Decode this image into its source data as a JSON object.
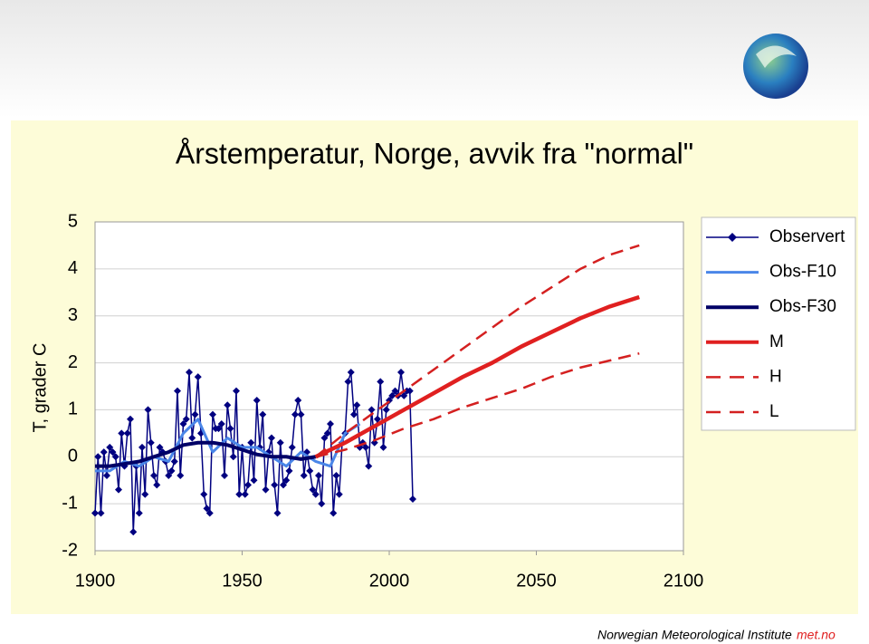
{
  "chart_data": {
    "type": "line",
    "title": "Årstemperatur, Norge, avvik fra \"normal\"",
    "y_label": "T, grader C",
    "xlim": [
      1900,
      2100
    ],
    "ylim": [
      -2,
      5
    ],
    "xticks": [
      1900,
      1950,
      2000,
      2050,
      2100
    ],
    "yticks": [
      -2,
      -1,
      0,
      1,
      2,
      3,
      4,
      5
    ],
    "grid": true,
    "legend": "right",
    "series": [
      {
        "name": "Observert",
        "color": "#000080",
        "marker": "diamond",
        "width": 1.5,
        "x": [
          1900,
          1901,
          1902,
          1903,
          1904,
          1905,
          1906,
          1907,
          1908,
          1909,
          1910,
          1911,
          1912,
          1913,
          1914,
          1915,
          1916,
          1917,
          1918,
          1919,
          1920,
          1921,
          1922,
          1923,
          1924,
          1925,
          1926,
          1927,
          1928,
          1929,
          1930,
          1931,
          1932,
          1933,
          1934,
          1935,
          1936,
          1937,
          1938,
          1939,
          1940,
          1941,
          1942,
          1943,
          1944,
          1945,
          1946,
          1947,
          1948,
          1949,
          1950,
          1951,
          1952,
          1953,
          1954,
          1955,
          1956,
          1957,
          1958,
          1959,
          1960,
          1961,
          1962,
          1963,
          1964,
          1965,
          1966,
          1967,
          1968,
          1969,
          1970,
          1971,
          1972,
          1973,
          1974,
          1975,
          1976,
          1977,
          1978,
          1979,
          1980,
          1981,
          1982,
          1983,
          1984,
          1985,
          1986,
          1987,
          1988,
          1989,
          1990,
          1991,
          1992,
          1993,
          1994,
          1995,
          1996,
          1997,
          1998,
          1999,
          2000,
          2001,
          2002,
          2003,
          2004,
          2005,
          2006,
          2007,
          2008
        ],
        "values": [
          -1.2,
          0.0,
          -1.2,
          0.1,
          -0.4,
          0.2,
          0.1,
          0.0,
          -0.7,
          0.5,
          -0.2,
          0.5,
          0.8,
          -1.6,
          -0.2,
          -1.2,
          0.2,
          -0.8,
          1.0,
          0.3,
          -0.4,
          -0.6,
          0.2,
          0.1,
          -0.1,
          -0.4,
          -0.3,
          -0.1,
          1.4,
          -0.4,
          0.7,
          0.8,
          1.8,
          0.4,
          0.9,
          1.7,
          0.5,
          -0.8,
          -1.1,
          -1.2,
          0.9,
          0.6,
          0.6,
          0.7,
          -0.4,
          1.1,
          0.6,
          0.0,
          1.4,
          -0.8,
          0.2,
          -0.8,
          -0.6,
          0.3,
          -0.5,
          1.2,
          0.2,
          0.9,
          -0.7,
          0.1,
          0.4,
          -0.6,
          -1.2,
          0.3,
          -0.6,
          -0.5,
          -0.3,
          0.2,
          0.9,
          1.2,
          0.9,
          -0.4,
          0.1,
          -0.3,
          -0.7,
          -0.8,
          -0.4,
          -1.0,
          0.4,
          0.5,
          0.7,
          -1.2,
          -0.4,
          -0.8,
          0.3,
          0.5,
          1.6,
          1.8,
          0.9,
          1.1,
          0.2,
          0.3,
          0.2,
          -0.2,
          1.0,
          0.3,
          0.8,
          1.6,
          0.2,
          1.0,
          1.2,
          1.3,
          1.4,
          1.3,
          1.8,
          1.3,
          1.4,
          1.4,
          -0.9
        ]
      },
      {
        "name": "Obs-F10",
        "color": "#4a86e8",
        "width": 3,
        "x": [
          1900,
          1905,
          1910,
          1915,
          1920,
          1925,
          1930,
          1935,
          1940,
          1945,
          1950,
          1955,
          1960,
          1965,
          1970,
          1975,
          1980,
          1985,
          1990
        ],
        "values": [
          -0.3,
          -0.3,
          -0.1,
          -0.2,
          0.0,
          -0.1,
          0.5,
          0.8,
          0.1,
          0.4,
          0.2,
          0.2,
          0.0,
          -0.2,
          0.1,
          -0.1,
          -0.2,
          0.5,
          0.7
        ]
      },
      {
        "name": "Obs-F30",
        "color": "#000066",
        "width": 4,
        "x": [
          1900,
          1905,
          1910,
          1915,
          1920,
          1925,
          1930,
          1935,
          1940,
          1945,
          1950,
          1955,
          1960,
          1965,
          1970,
          1975
        ],
        "values": [
          -0.2,
          -0.2,
          -0.15,
          -0.1,
          0.0,
          0.1,
          0.25,
          0.3,
          0.3,
          0.25,
          0.15,
          0.05,
          0.0,
          0.0,
          -0.05,
          0.0
        ]
      },
      {
        "name": "M",
        "color": "#e02020",
        "width": 4.5,
        "x": [
          1975,
          1985,
          1995,
          2005,
          2015,
          2025,
          2035,
          2045,
          2055,
          2065,
          2075,
          2085
        ],
        "values": [
          0.0,
          0.3,
          0.65,
          1.0,
          1.35,
          1.7,
          2.0,
          2.35,
          2.65,
          2.95,
          3.2,
          3.4
        ]
      },
      {
        "name": "H",
        "color": "#d42020",
        "width": 2.5,
        "dash": true,
        "x": [
          1975,
          1985,
          1995,
          2005,
          2015,
          2025,
          2035,
          2045,
          2055,
          2065,
          2075,
          2085
        ],
        "values": [
          0.0,
          0.5,
          0.95,
          1.4,
          1.85,
          2.3,
          2.75,
          3.2,
          3.6,
          4.0,
          4.3,
          4.5
        ]
      },
      {
        "name": "L",
        "color": "#d42020",
        "width": 2.5,
        "dash": true,
        "x": [
          1975,
          1985,
          1995,
          2005,
          2015,
          2025,
          2035,
          2045,
          2055,
          2065,
          2075,
          2085
        ],
        "values": [
          0.0,
          0.15,
          0.35,
          0.6,
          0.8,
          1.05,
          1.25,
          1.45,
          1.7,
          1.9,
          2.05,
          2.2
        ]
      }
    ]
  },
  "footer": {
    "institute": "Norwegian Meteorological Institute",
    "site": "met.no"
  }
}
